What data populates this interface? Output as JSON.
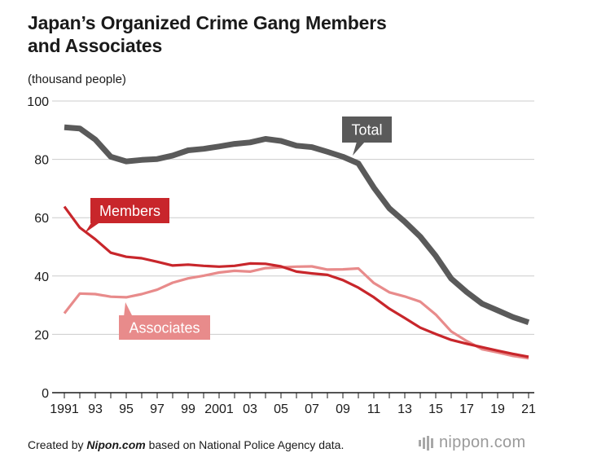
{
  "title_line1": "Japan’s Organized Crime Gang Members",
  "title_line2": "and Associates",
  "unit_label": "(thousand people)",
  "footer": {
    "prefix": "Created by ",
    "site": "Nipon.com",
    "suffix": " based on National Police Agency data."
  },
  "logo_text": "nippon.com",
  "chart_data": {
    "type": "line",
    "title": "Japan’s Organized Crime Gang Members and Associates",
    "ylabel": "(thousand people)",
    "xlabel": "",
    "x": [
      1991,
      1992,
      1993,
      1994,
      1995,
      1996,
      1997,
      1998,
      1999,
      2000,
      2001,
      2002,
      2003,
      2004,
      2005,
      2006,
      2007,
      2008,
      2009,
      2010,
      2011,
      2012,
      2013,
      2014,
      2015,
      2016,
      2017,
      2018,
      2019,
      2020,
      2021
    ],
    "x_tick_labels": [
      {
        "year": 1991,
        "label": "1991"
      },
      {
        "year": 1993,
        "label": "93"
      },
      {
        "year": 1995,
        "label": "95"
      },
      {
        "year": 1997,
        "label": "97"
      },
      {
        "year": 1999,
        "label": "99"
      },
      {
        "year": 2001,
        "label": "2001"
      },
      {
        "year": 2003,
        "label": "03"
      },
      {
        "year": 2005,
        "label": "05"
      },
      {
        "year": 2007,
        "label": "07"
      },
      {
        "year": 2009,
        "label": "09"
      },
      {
        "year": 2011,
        "label": "11"
      },
      {
        "year": 2013,
        "label": "13"
      },
      {
        "year": 2015,
        "label": "15"
      },
      {
        "year": 2017,
        "label": "17"
      },
      {
        "year": 2019,
        "label": "19"
      },
      {
        "year": 2021,
        "label": "21"
      }
    ],
    "xlim": [
      1991,
      2021
    ],
    "ylim": [
      0,
      100
    ],
    "yticks": [
      0,
      20,
      40,
      60,
      80,
      100
    ],
    "grid": true,
    "series": [
      {
        "name": "Total",
        "color": "#5a5a5a",
        "values": [
          91.0,
          90.6,
          86.8,
          80.9,
          79.3,
          79.8,
          80.1,
          81.3,
          83.1,
          83.6,
          84.4,
          85.3,
          85.8,
          87.0,
          86.3,
          84.7,
          84.2,
          82.6,
          80.9,
          78.6,
          70.3,
          63.2,
          58.6,
          53.5,
          46.9,
          39.1,
          34.5,
          30.5,
          28.2,
          25.9,
          24.1
        ]
      },
      {
        "name": "Members",
        "color": "#c8262b",
        "values": [
          63.8,
          56.6,
          52.6,
          48.0,
          46.6,
          46.1,
          44.9,
          43.6,
          43.9,
          43.5,
          43.2,
          43.5,
          44.3,
          44.2,
          43.3,
          41.5,
          40.9,
          40.4,
          38.6,
          36.0,
          32.7,
          28.8,
          25.6,
          22.3,
          20.1,
          18.1,
          16.8,
          15.6,
          14.4,
          13.3,
          12.3
        ]
      },
      {
        "name": "Associates",
        "color": "#e88b8b",
        "values": [
          27.2,
          34.0,
          33.8,
          32.9,
          32.7,
          33.8,
          35.3,
          37.7,
          39.2,
          40.1,
          41.2,
          41.8,
          41.5,
          42.7,
          43.0,
          43.2,
          43.3,
          42.2,
          42.3,
          42.6,
          37.6,
          34.4,
          33.0,
          31.2,
          26.8,
          21.0,
          17.7,
          14.9,
          13.8,
          12.6,
          11.8
        ]
      }
    ],
    "annotations": [
      {
        "series": "Total",
        "text": "Total"
      },
      {
        "series": "Members",
        "text": "Members"
      },
      {
        "series": "Associates",
        "text": "Associates"
      }
    ]
  }
}
